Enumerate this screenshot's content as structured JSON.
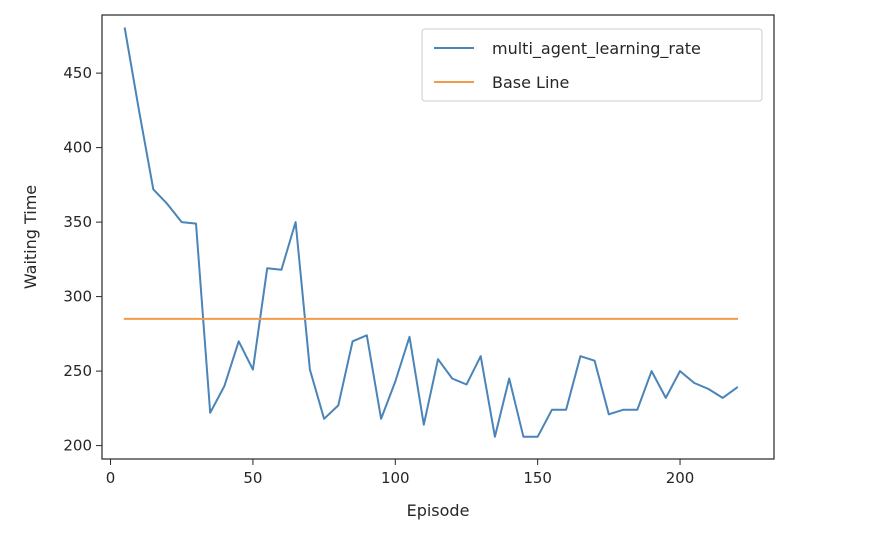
{
  "chart_data": {
    "type": "line",
    "title": "",
    "xlabel": "Episode",
    "ylabel": "Waiting Time",
    "xlim": [
      -3,
      233
    ],
    "ylim": [
      191,
      489
    ],
    "xticks": [
      0,
      50,
      100,
      150,
      200
    ],
    "yticks": [
      200,
      250,
      300,
      350,
      400,
      450
    ],
    "grid": false,
    "legend_position": "top-right",
    "series": [
      {
        "name": "multi_agent_learning_rate",
        "color": "#4a84b8",
        "x": [
          5,
          10,
          15,
          20,
          25,
          30,
          35,
          40,
          45,
          50,
          55,
          60,
          65,
          70,
          75,
          80,
          85,
          90,
          95,
          100,
          105,
          110,
          115,
          120,
          125,
          130,
          135,
          140,
          145,
          150,
          155,
          160,
          165,
          170,
          175,
          180,
          185,
          190,
          195,
          200,
          205,
          210,
          215,
          220
        ],
        "y": [
          480,
          425,
          372,
          362,
          350,
          349,
          222,
          240,
          270,
          251,
          319,
          318,
          350,
          251,
          218,
          227,
          270,
          274,
          218,
          243,
          273,
          214,
          258,
          245,
          241,
          260,
          206,
          245,
          206,
          206,
          224,
          224,
          260,
          257,
          221,
          224,
          224,
          250,
          232,
          250,
          242,
          238,
          232,
          239
        ]
      },
      {
        "name": "Base Line",
        "color": "#f39b4a",
        "x": [
          5,
          220
        ],
        "y": [
          285,
          285
        ]
      }
    ]
  }
}
